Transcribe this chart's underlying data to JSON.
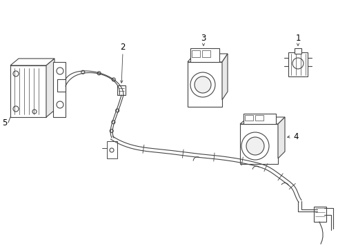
{
  "bg_color": "#ffffff",
  "line_color": "#444444",
  "label_color": "#000000",
  "fig_width": 4.9,
  "fig_height": 3.6,
  "dpi": 100,
  "label_fontsize": 8.5
}
